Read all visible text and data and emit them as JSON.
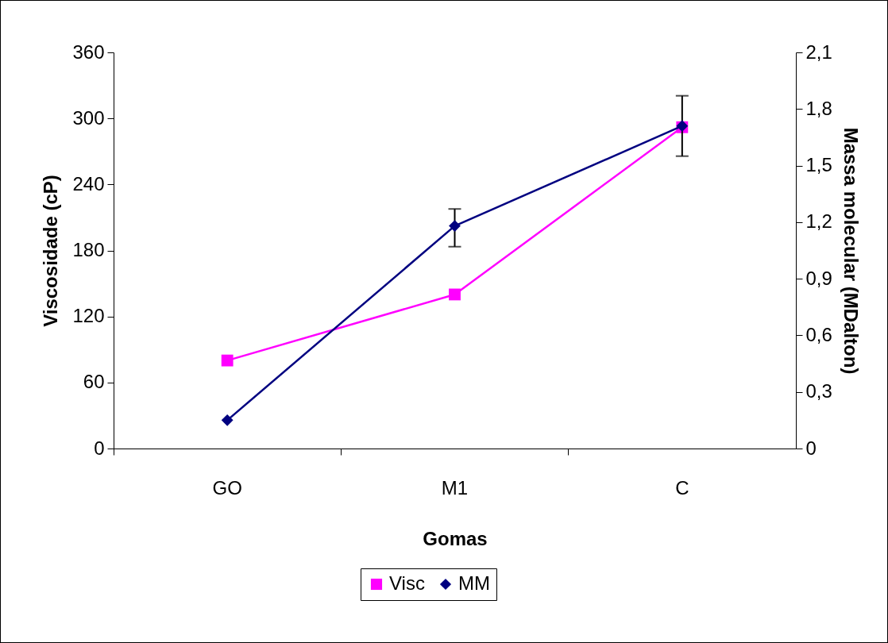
{
  "chart_data": {
    "type": "line",
    "xlabel": "Gomas",
    "ylabel": "Viscosidade (cP)",
    "y2label": "Massa molecular (MDalton)",
    "categories": [
      "GO",
      "M1",
      "C"
    ],
    "series": [
      {
        "name": "Visc",
        "color": "#ff00ff",
        "marker": "square",
        "values": [
          80,
          140,
          292
        ]
      },
      {
        "name": "MM",
        "color": "#000080",
        "marker": "diamond",
        "axis": "y2",
        "values": [
          0.15,
          1.18,
          1.71
        ],
        "errors": [
          null,
          [
            1.07,
            1.27
          ],
          [
            1.55,
            1.87
          ]
        ]
      }
    ],
    "ylim": [
      0,
      360
    ],
    "yticks": [
      0,
      60,
      120,
      180,
      240,
      300,
      360
    ],
    "y2lim": [
      0,
      2.1
    ],
    "y2ticks": [
      0,
      {
        "value": 0.3,
        "label": "0,3"
      },
      {
        "value": 0.6,
        "label": "0,6"
      },
      {
        "value": 0.9,
        "label": "0,9"
      },
      {
        "value": 1.2,
        "label": "1,2"
      },
      {
        "value": 1.5,
        "label": "1,5"
      },
      {
        "value": 1.8,
        "label": "1,8"
      },
      {
        "value": 2.1,
        "label": "2,1"
      }
    ],
    "grid": false,
    "legend": "bottom",
    "line_style": "solid"
  }
}
